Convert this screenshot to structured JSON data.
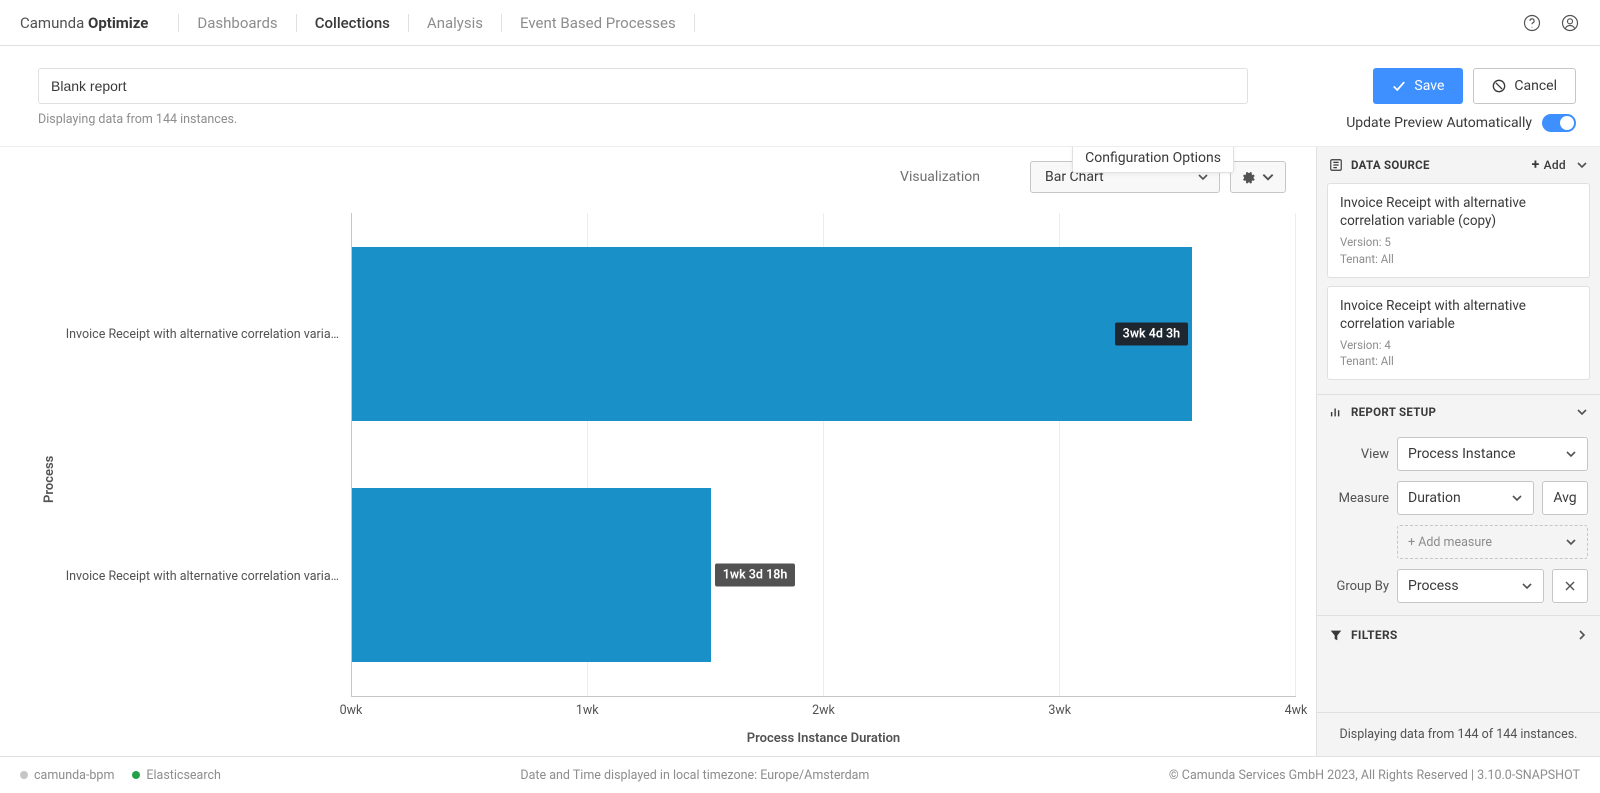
{
  "brand": {
    "name": "Camunda",
    "product": "Optimize"
  },
  "nav": {
    "items": [
      "Dashboards",
      "Collections",
      "Analysis",
      "Event Based Processes"
    ],
    "active_index": 1
  },
  "report": {
    "title": "Blank report",
    "instances_line": "Displaying data from 144 instances."
  },
  "actions": {
    "save": "Save",
    "cancel": "Cancel",
    "update_preview": "Update Preview Automatically",
    "toggle_on": true
  },
  "visualization": {
    "label": "Visualization",
    "selected": "Bar Chart",
    "config_tooltip": "Configuration Options"
  },
  "chart": {
    "type": "bar-horizontal",
    "y_axis_title": "Process",
    "x_axis_title": "Process Instance Duration",
    "bar_color": "#1991c8",
    "background_color": "#ffffff",
    "grid_color": "#ededed",
    "x_ticks": [
      {
        "pos_pct": 0,
        "label": "0wk"
      },
      {
        "pos_pct": 25,
        "label": "1wk"
      },
      {
        "pos_pct": 50,
        "label": "2wk"
      },
      {
        "pos_pct": 75,
        "label": "3wk"
      },
      {
        "pos_pct": 100,
        "label": "4wk"
      }
    ],
    "bars": [
      {
        "label": "Invoice Receipt with alternative correlation varia…",
        "value_pct": 89,
        "badge": "3wk 4d 3h",
        "badge_pos": "inside"
      },
      {
        "label": "Invoice Receipt with alternative correlation varia…",
        "value_pct": 38,
        "badge": "1wk 3d 18h",
        "badge_pos": "outside"
      }
    ]
  },
  "panel": {
    "data_source": {
      "title": "DATA SOURCE",
      "add": "Add",
      "cards": [
        {
          "title": "Invoice Receipt with alternative correlation variable (copy)",
          "version": "Version: 5",
          "tenant": "Tenant: All"
        },
        {
          "title": "Invoice Receipt with alternative correlation variable",
          "version": "Version: 4",
          "tenant": "Tenant: All"
        }
      ]
    },
    "report_setup": {
      "title": "REPORT SETUP",
      "view_label": "View",
      "view_value": "Process Instance",
      "measure_label": "Measure",
      "measure_value": "Duration",
      "measure_agg": "Avg",
      "add_measure": "+ Add measure",
      "groupby_label": "Group By",
      "groupby_value": "Process"
    },
    "filters": {
      "title": "FILTERS"
    },
    "footer": "Displaying data from 144 of 144 instances."
  },
  "bottom": {
    "left": [
      {
        "dot": "grey",
        "text": "camunda-bpm"
      },
      {
        "dot": "green",
        "text": "Elasticsearch"
      }
    ],
    "center": "Date and Time displayed in local timezone: Europe/Amsterdam",
    "right": "© Camunda Services GmbH 2023, All Rights Reserved | 3.10.0-SNAPSHOT"
  }
}
